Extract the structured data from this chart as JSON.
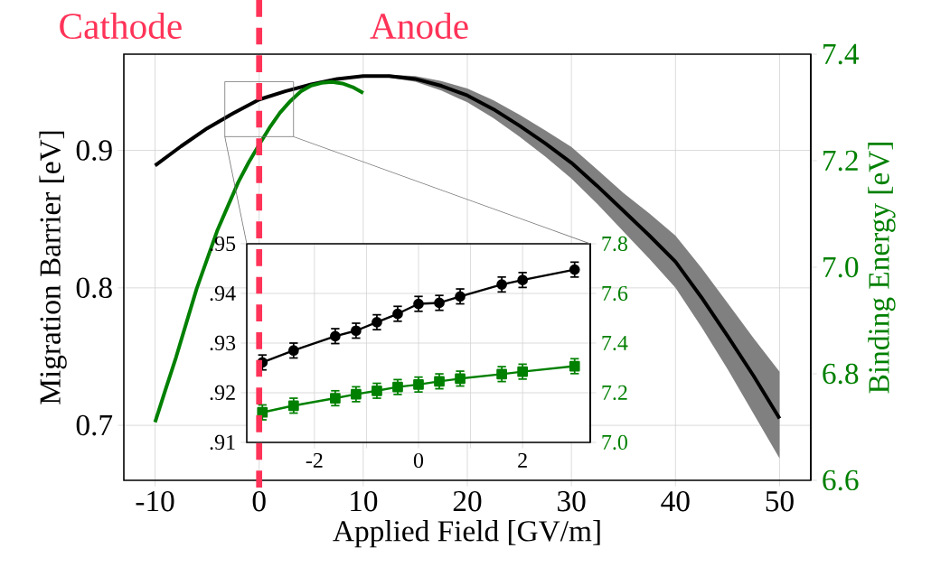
{
  "chart_data": [
    {
      "type": "line",
      "xlabel": "Applied Field [GV/m]",
      "ylabel": "Migration Barrier [eV]",
      "y2label": "Binding Energy [eV]",
      "annotations": [
        "Cathode",
        "Anode"
      ],
      "xlim": [
        -13,
        53
      ],
      "xticks": [
        -10,
        0,
        10,
        20,
        30,
        40,
        50
      ],
      "ylim": [
        0.66,
        0.97
      ],
      "yticks": [
        0.7,
        0.8,
        0.9
      ],
      "y2lim": [
        6.6,
        7.4
      ],
      "y2ticks": [
        6.6,
        6.8,
        {
          "value": 7.0,
          "label": "7.0"
        },
        7.2,
        7.4
      ],
      "grid": true,
      "ref_lines": [
        {
          "axis": "x",
          "value": 0,
          "color": "#ff3358",
          "line_style": "dashed"
        }
      ],
      "series": [
        {
          "color": "#000000",
          "x": [
            -10,
            -7.5,
            -5,
            -2.5,
            0,
            2.5,
            5,
            7.5,
            10,
            12.5,
            15,
            17.5,
            20,
            22.5,
            25,
            27.5,
            30,
            32.5,
            35,
            37.5,
            40,
            42.5,
            45,
            47.5,
            50
          ],
          "values": [
            0.889,
            0.903,
            0.916,
            0.927,
            0.937,
            0.943,
            0.948,
            0.952,
            0.954,
            0.954,
            0.952,
            0.947,
            0.94,
            0.93,
            0.918,
            0.905,
            0.891,
            0.874,
            0.856,
            0.838,
            0.819,
            0.793,
            0.765,
            0.736,
            0.705
          ],
          "lower": [
            0.889,
            0.903,
            0.916,
            0.927,
            0.937,
            0.943,
            0.948,
            0.952,
            0.954,
            0.953,
            0.95,
            0.9435,
            0.935,
            0.9235,
            0.91,
            0.8955,
            0.8795,
            0.861,
            0.841,
            0.821,
            0.8,
            0.7715,
            0.741,
            0.7085,
            0.676
          ],
          "upper": [
            0.889,
            0.903,
            0.916,
            0.927,
            0.937,
            0.943,
            0.948,
            0.952,
            0.954,
            0.955,
            0.954,
            0.9505,
            0.945,
            0.9365,
            0.926,
            0.9145,
            0.9025,
            0.886,
            0.869,
            0.854,
            0.838,
            0.8145,
            0.789,
            0.7635,
            0.739
          ]
        },
        {
          "color": "#008000",
          "axis": "y2",
          "x": [
            -10,
            -9,
            -8,
            -7,
            -6,
            -5,
            -4,
            -3,
            -2,
            -1,
            0,
            1,
            2,
            3,
            4,
            5,
            6,
            7,
            8,
            9,
            10
          ],
          "values": [
            6.709,
            6.77,
            6.83,
            6.895,
            6.96,
            7.015,
            7.07,
            7.115,
            7.16,
            7.197,
            7.23,
            7.262,
            7.29,
            7.312,
            7.33,
            7.341,
            7.346,
            7.348,
            7.345,
            7.338,
            7.327
          ]
        }
      ]
    },
    {
      "type": "line",
      "xlim": [
        -3.3,
        3.3
      ],
      "xticks": [
        -2,
        {
          "value": -1,
          "label": null
        },
        0,
        {
          "value": 1,
          "label": null
        },
        2
      ],
      "ylim": [
        0.91,
        0.95
      ],
      "yticks": [
        {
          "value": 0.91,
          "label": ".91"
        },
        {
          "value": 0.92,
          "label": ".92"
        },
        {
          "value": 0.93,
          "label": ".93"
        },
        {
          "value": 0.94,
          "label": ".94"
        },
        {
          "value": 0.95,
          "label": ".95"
        }
      ],
      "y2lim": [
        7.0,
        7.8
      ],
      "y2ticks": [
        {
          "value": 7.0,
          "label": "7.0"
        },
        7.2,
        7.4,
        7.6,
        7.8
      ],
      "grid": true,
      "series": [
        {
          "color": "#000000",
          "marker": "circle",
          "x": [
            -3,
            -2.4,
            -1.6,
            -1.2,
            -0.8,
            -0.4,
            0,
            0.4,
            0.8,
            1.6,
            2,
            3
          ],
          "values": [
            0.9261,
            0.9285,
            0.9314,
            0.9325,
            0.9342,
            0.9359,
            0.9379,
            0.9381,
            0.9394,
            0.9418,
            0.9427,
            0.9448
          ],
          "errors": [
            0.0015,
            0.0015,
            0.0015,
            0.0015,
            0.0015,
            0.0015,
            0.0015,
            0.0015,
            0.0015,
            0.0015,
            0.0015,
            0.0015
          ]
        },
        {
          "color": "#008000",
          "marker": "square",
          "axis": "y2",
          "x": [
            -3,
            -2.4,
            -1.6,
            -1.2,
            -0.8,
            -0.4,
            0,
            0.4,
            0.8,
            1.6,
            2,
            3
          ],
          "values": [
            7.121,
            7.148,
            7.178,
            7.194,
            7.208,
            7.223,
            7.233,
            7.246,
            7.257,
            7.275,
            7.285,
            7.307
          ],
          "errors": [
            0.03,
            0.03,
            0.03,
            0.03,
            0.03,
            0.03,
            0.03,
            0.03,
            0.03,
            0.03,
            0.03,
            0.03
          ]
        }
      ]
    }
  ]
}
